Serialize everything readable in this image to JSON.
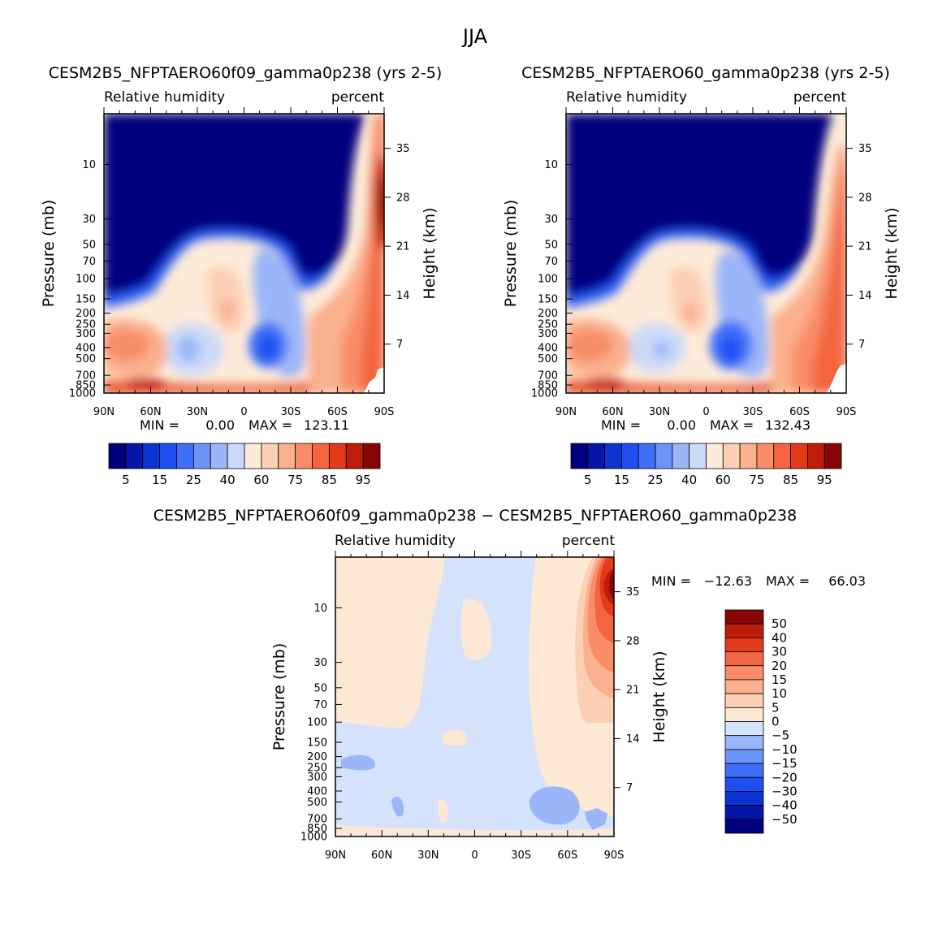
{
  "figure": {
    "title": "JJA"
  },
  "colors": {
    "abs_scale": [
      "#00007f",
      "#0517a8",
      "#0d33d1",
      "#1f4ff0",
      "#3f6ff8",
      "#6b93f8",
      "#9bb6f8",
      "#cbdaf8",
      "#fdebd9",
      "#fcd0b4",
      "#fbb08e",
      "#f88d67",
      "#f26540",
      "#e23a1a",
      "#be1d0a",
      "#870605"
    ],
    "diff_scale": [
      "#00007f",
      "#0517a8",
      "#0d33d1",
      "#1f4ff0",
      "#3f6ff8",
      "#6b93f8",
      "#9bb6f8",
      "#d4e3fb",
      "#fde8d6",
      "#fcd0b4",
      "#fbb08e",
      "#f88d67",
      "#f26540",
      "#e23a1a",
      "#be1d0a",
      "#870605"
    ]
  },
  "chart_data": [
    {
      "type": "heatmap",
      "title": "CESM2B5_NFPTAERO60f09_gamma0p238 (yrs 2-5)",
      "left_label": "Relative humidity",
      "right_label": "percent",
      "ylabel": "Pressure (mb)",
      "y2label": "Height (km)",
      "x_ticks": [
        "90N",
        "60N",
        "30N",
        "0",
        "30S",
        "60S",
        "90S"
      ],
      "y_ticks": [
        "10",
        "30",
        "50",
        "70",
        "100",
        "150",
        "200",
        "250",
        "300",
        "400",
        "500",
        "700",
        "850",
        "1000"
      ],
      "y2_ticks": [
        "35",
        "28",
        "21",
        "14",
        "7"
      ],
      "min_label": "MIN =",
      "min_value": "0.00",
      "max_label": "MAX =",
      "max_value": "123.11",
      "levels": [
        0,
        5,
        10,
        15,
        20,
        25,
        30,
        40,
        50,
        60,
        65,
        70,
        75,
        80,
        85,
        90,
        95
      ],
      "colorbar_labels": [
        "5",
        "15",
        "25",
        "40",
        "60",
        "75",
        "85",
        "95"
      ]
    },
    {
      "type": "heatmap",
      "title": "CESM2B5_NFPTAERO60_gamma0p238 (yrs 2-5)",
      "left_label": "Relative humidity",
      "right_label": "percent",
      "ylabel": "Pressure (mb)",
      "y2label": "Height (km)",
      "x_ticks": [
        "90N",
        "60N",
        "30N",
        "0",
        "30S",
        "60S",
        "90S"
      ],
      "y_ticks": [
        "10",
        "30",
        "50",
        "70",
        "100",
        "150",
        "200",
        "250",
        "300",
        "400",
        "500",
        "700",
        "850",
        "1000"
      ],
      "y2_ticks": [
        "35",
        "28",
        "21",
        "14",
        "7"
      ],
      "min_label": "MIN =",
      "min_value": "0.00",
      "max_label": "MAX =",
      "max_value": "132.43",
      "levels": [
        0,
        5,
        10,
        15,
        20,
        25,
        30,
        40,
        50,
        60,
        65,
        70,
        75,
        80,
        85,
        90,
        95
      ],
      "colorbar_labels": [
        "5",
        "15",
        "25",
        "40",
        "60",
        "75",
        "85",
        "95"
      ]
    },
    {
      "type": "heatmap",
      "title": "CESM2B5_NFPTAERO60f09_gamma0p238 − CESM2B5_NFPTAERO60_gamma0p238",
      "left_label": "Relative humidity",
      "right_label": "percent",
      "ylabel": "Pressure (mb)",
      "y2label": "Height (km)",
      "x_ticks": [
        "90N",
        "60N",
        "30N",
        "0",
        "30S",
        "60S",
        "90S"
      ],
      "y_ticks": [
        "10",
        "30",
        "50",
        "70",
        "100",
        "150",
        "200",
        "250",
        "300",
        "400",
        "500",
        "700",
        "850",
        "1000"
      ],
      "y2_ticks": [
        "35",
        "28",
        "21",
        "14",
        "7"
      ],
      "min_label": "MIN =",
      "min_value": "−12.63",
      "max_label": "MAX =",
      "max_value": "66.03",
      "levels": [
        -50,
        -40,
        -30,
        -20,
        -15,
        -10,
        -5,
        0,
        5,
        10,
        15,
        20,
        30,
        40,
        50
      ],
      "colorbar_labels": [
        "50",
        "40",
        "30",
        "20",
        "15",
        "10",
        "5",
        "0",
        "−5",
        "−10",
        "−15",
        "−20",
        "−30",
        "−40",
        "−50"
      ]
    }
  ]
}
